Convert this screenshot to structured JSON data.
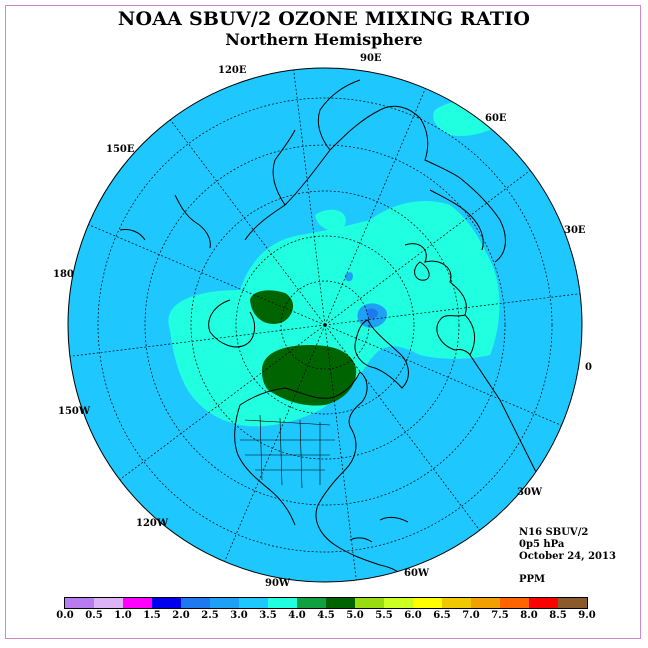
{
  "title": "NOAA SBUV/2 OZONE MIXING RATIO",
  "subtitle": "Northern Hemisphere",
  "info": {
    "instrument": "N16 SBUV/2",
    "level": "0p5 hPa",
    "date": "October 24, 2013",
    "units": "PPM"
  },
  "longitude_labels": [
    "90E",
    "60E",
    "30E",
    "0",
    "30W",
    "60W",
    "90W",
    "120W",
    "150W",
    "180",
    "150E",
    "120E"
  ],
  "colorbar": {
    "colors": [
      "#b87cf0",
      "#dcb4f5",
      "#ff00ff",
      "#0000ee",
      "#1e78f0",
      "#1ea0f5",
      "#1ec8ff",
      "#20ffe0",
      "#10a040",
      "#006400",
      "#99dd11",
      "#ccff22",
      "#ffff00",
      "#f0c800",
      "#f0a000",
      "#ff6400",
      "#ff0000",
      "#8b5a2b"
    ],
    "ticks": [
      "0.0",
      "0.5",
      "1.0",
      "1.5",
      "2.0",
      "2.5",
      "3.0",
      "3.5",
      "4.0",
      "4.5",
      "5.0",
      "5.5",
      "6.0",
      "6.5",
      "7.0",
      "7.5",
      "8.0",
      "8.5",
      "9.0"
    ]
  },
  "map_colors": {
    "background_field": "#1ec8ff",
    "band_3_5_4_0": "#20ffe0",
    "band_4_5_5_0": "#006400",
    "band_4_0_4_5": "#10a040",
    "band_2_5_3_0": "#1ea0f5"
  }
}
